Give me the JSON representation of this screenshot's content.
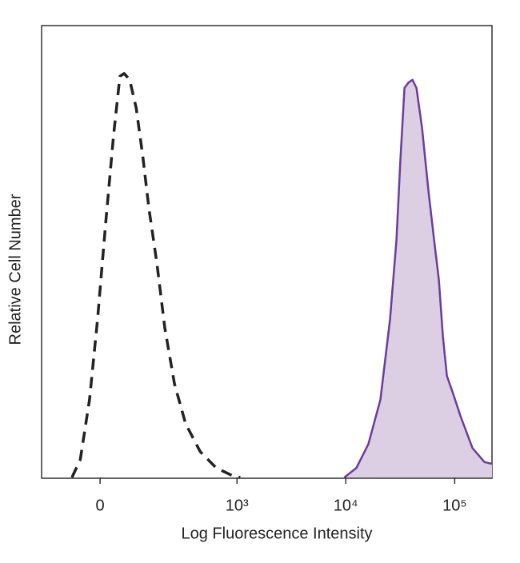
{
  "chart_data": {
    "type": "histogram-overlay",
    "x_label": "Log Fluorescence Intensity",
    "y_label": "Relative Cell Number",
    "xscale": "asinh",
    "xscale_cofactor": 111,
    "xlim": [
      -175,
      220000
    ],
    "ylim": [
      0,
      100
    ],
    "xticks": [
      0,
      {
        "value": 1000,
        "label": "10³"
      },
      {
        "value": 10000,
        "label": "10⁴"
      },
      {
        "value": 100000,
        "label": "10⁵"
      }
    ],
    "series": [
      {
        "color": "#222222",
        "dashed": true,
        "filled": false,
        "x": [
          -70,
          -48,
          -25,
          -6,
          13,
          32,
          48,
          59,
          74,
          93,
          114,
          136,
          168,
          204,
          256,
          329,
          454,
          642,
          905,
          1071
        ],
        "values": [
          0,
          3.9,
          17.2,
          34.9,
          56.1,
          75.6,
          88.8,
          89.4,
          88.0,
          81.8,
          71.2,
          59.6,
          47.3,
          33.1,
          20.7,
          11.9,
          5.7,
          2.1,
          0.4,
          0
        ]
      },
      {
        "color": "#6a3d9a",
        "fill": "#dccfe3",
        "dashed": false,
        "filled": true,
        "x": [
          9700,
          12510,
          16130,
          20790,
          25480,
          29190,
          31750,
          34580,
          37630,
          40960,
          44570,
          50170,
          57500,
          64710,
          71600,
          77920,
          84800,
          95500,
          113000,
          145700,
          187800,
          220000
        ],
        "values": [
          0,
          2.1,
          7.4,
          17.2,
          34.9,
          52.6,
          70.3,
          86.2,
          87.4,
          88.0,
          86.2,
          77.3,
          63.2,
          52.6,
          43.7,
          31.3,
          22.5,
          18.9,
          13.6,
          6.5,
          3.4,
          3.0
        ]
      }
    ]
  }
}
